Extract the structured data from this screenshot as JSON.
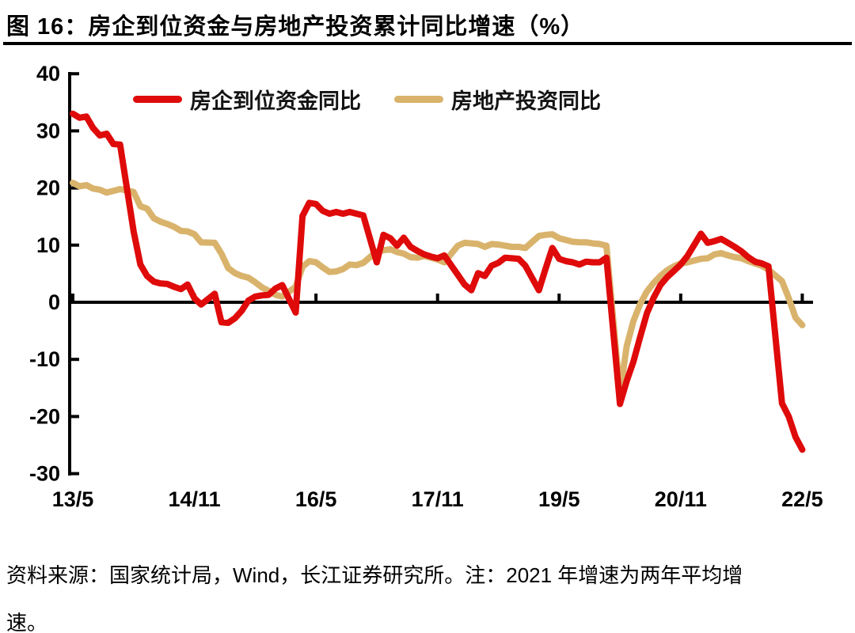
{
  "page": {
    "title": "图 16：房企到位资金与房地产投资累计同比增速（%）",
    "footer": "资料来源：国家统计局，Wind，长江证券研究所。注：2021 年增速为两年平均增\n速。"
  },
  "colors": {
    "funds_line": "#df0a0a",
    "investment_line": "#d9b36c",
    "axis": "#000000",
    "text": "#000000"
  },
  "chart_data": {
    "type": "line",
    "title": "房企到位资金与房地产投资累计同比增速（%）",
    "xlabel": "",
    "ylabel": "",
    "ylim": [
      -30,
      40
    ],
    "y_ticks": [
      40,
      30,
      20,
      10,
      0,
      -10,
      -20,
      -30
    ],
    "x_tick_labels": [
      "13/5",
      "14/11",
      "16/5",
      "17/11",
      "19/5",
      "20/11",
      "22/5"
    ],
    "x_tick_month_offsets": [
      0,
      18,
      36,
      54,
      72,
      90,
      108
    ],
    "x_start": "2013/5",
    "x_end": "2022/5",
    "x_unit": "month offset from 2013/5 (cumulative YoY %, no January data points)",
    "grid": false,
    "legend_position": "top",
    "annotation_note": "2021 年增速为两年平均增速",
    "series": [
      {
        "name": "房企到位资金同比",
        "color": "#df0a0a",
        "points": [
          [
            0,
            33.0
          ],
          [
            1,
            32.3
          ],
          [
            2,
            32.5
          ],
          [
            3,
            30.5
          ],
          [
            4,
            29.2
          ],
          [
            5,
            29.5
          ],
          [
            6,
            27.7
          ],
          [
            7,
            27.6
          ],
          [
            9,
            12.4
          ],
          [
            10,
            6.6
          ],
          [
            11,
            4.6
          ],
          [
            12,
            3.6
          ],
          [
            13,
            3.3
          ],
          [
            14,
            3.2
          ],
          [
            15,
            2.7
          ],
          [
            16,
            2.3
          ],
          [
            17,
            3.1
          ],
          [
            18,
            0.7
          ],
          [
            19,
            -0.4
          ],
          [
            21,
            1.5
          ],
          [
            22,
            -3.5
          ],
          [
            23,
            -3.6
          ],
          [
            24,
            -2.8
          ],
          [
            25,
            -1.5
          ],
          [
            26,
            0.3
          ],
          [
            27,
            1.0
          ],
          [
            28,
            1.2
          ],
          [
            29,
            1.3
          ],
          [
            30,
            2.4
          ],
          [
            31,
            3.0
          ],
          [
            33,
            -1.8
          ],
          [
            34,
            15.1
          ],
          [
            35,
            17.4
          ],
          [
            36,
            17.2
          ],
          [
            37,
            16.0
          ],
          [
            38,
            15.5
          ],
          [
            39,
            15.8
          ],
          [
            40,
            15.5
          ],
          [
            41,
            15.8
          ],
          [
            42,
            15.5
          ],
          [
            43,
            15.2
          ],
          [
            45,
            7.0
          ],
          [
            46,
            11.8
          ],
          [
            47,
            11.2
          ],
          [
            48,
            9.9
          ],
          [
            49,
            11.3
          ],
          [
            50,
            9.7
          ],
          [
            51,
            9.0
          ],
          [
            52,
            8.4
          ],
          [
            53,
            8.0
          ],
          [
            54,
            7.7
          ],
          [
            55,
            8.2
          ],
          [
            57,
            4.8
          ],
          [
            58,
            3.1
          ],
          [
            59,
            2.1
          ],
          [
            60,
            5.1
          ],
          [
            61,
            4.6
          ],
          [
            62,
            6.4
          ],
          [
            63,
            6.9
          ],
          [
            64,
            7.8
          ],
          [
            65,
            7.7
          ],
          [
            66,
            7.6
          ],
          [
            67,
            6.4
          ],
          [
            69,
            2.1
          ],
          [
            70,
            5.9
          ],
          [
            71,
            9.5
          ],
          [
            72,
            7.6
          ],
          [
            73,
            7.2
          ],
          [
            74,
            7.0
          ],
          [
            75,
            6.6
          ],
          [
            76,
            7.1
          ],
          [
            77,
            7.0
          ],
          [
            78,
            7.0
          ],
          [
            79,
            7.8
          ],
          [
            81,
            -17.8
          ],
          [
            82,
            -13.8
          ],
          [
            83,
            -10.4
          ],
          [
            84,
            -6.1
          ],
          [
            85,
            -1.9
          ],
          [
            86,
            0.8
          ],
          [
            87,
            3.0
          ],
          [
            88,
            4.4
          ],
          [
            89,
            5.5
          ],
          [
            90,
            6.6
          ],
          [
            91,
            8.1
          ],
          [
            93,
            12.0
          ],
          [
            94,
            10.4
          ],
          [
            95,
            10.7
          ],
          [
            96,
            11.1
          ],
          [
            97,
            10.4
          ],
          [
            98,
            9.7
          ],
          [
            99,
            8.9
          ],
          [
            100,
            7.9
          ],
          [
            101,
            7.1
          ],
          [
            102,
            6.8
          ],
          [
            103,
            6.3
          ],
          [
            105,
            -17.7
          ],
          [
            106,
            -20.0
          ],
          [
            107,
            -23.6
          ],
          [
            108,
            -25.8
          ]
        ]
      },
      {
        "name": "房地产投资同比",
        "color": "#d9b36c",
        "points": [
          [
            0,
            20.9
          ],
          [
            1,
            20.3
          ],
          [
            2,
            20.5
          ],
          [
            3,
            19.9
          ],
          [
            4,
            19.7
          ],
          [
            5,
            19.2
          ],
          [
            6,
            19.5
          ],
          [
            7,
            19.8
          ],
          [
            9,
            19.3
          ],
          [
            10,
            16.8
          ],
          [
            11,
            16.4
          ],
          [
            12,
            14.7
          ],
          [
            13,
            14.1
          ],
          [
            14,
            13.7
          ],
          [
            15,
            13.2
          ],
          [
            16,
            12.5
          ],
          [
            17,
            12.4
          ],
          [
            18,
            11.9
          ],
          [
            19,
            10.5
          ],
          [
            21,
            10.4
          ],
          [
            22,
            8.5
          ],
          [
            23,
            6.0
          ],
          [
            24,
            5.1
          ],
          [
            25,
            4.6
          ],
          [
            26,
            4.3
          ],
          [
            27,
            3.5
          ],
          [
            28,
            2.6
          ],
          [
            29,
            2.0
          ],
          [
            30,
            1.3
          ],
          [
            31,
            1.0
          ],
          [
            33,
            2.7
          ],
          [
            34,
            6.2
          ],
          [
            35,
            7.2
          ],
          [
            36,
            7.0
          ],
          [
            37,
            6.1
          ],
          [
            38,
            5.3
          ],
          [
            39,
            5.4
          ],
          [
            40,
            5.8
          ],
          [
            41,
            6.6
          ],
          [
            42,
            6.5
          ],
          [
            43,
            6.9
          ],
          [
            45,
            8.9
          ],
          [
            46,
            9.1
          ],
          [
            47,
            9.3
          ],
          [
            48,
            8.8
          ],
          [
            49,
            8.5
          ],
          [
            50,
            7.9
          ],
          [
            51,
            7.8
          ],
          [
            52,
            8.1
          ],
          [
            53,
            7.8
          ],
          [
            54,
            7.5
          ],
          [
            55,
            7.0
          ],
          [
            57,
            9.9
          ],
          [
            58,
            10.4
          ],
          [
            59,
            10.3
          ],
          [
            60,
            10.2
          ],
          [
            61,
            9.7
          ],
          [
            62,
            10.2
          ],
          [
            63,
            10.1
          ],
          [
            64,
            9.9
          ],
          [
            65,
            9.7
          ],
          [
            66,
            9.7
          ],
          [
            67,
            9.5
          ],
          [
            69,
            11.6
          ],
          [
            70,
            11.8
          ],
          [
            71,
            11.9
          ],
          [
            72,
            11.2
          ],
          [
            73,
            10.9
          ],
          [
            74,
            10.6
          ],
          [
            75,
            10.5
          ],
          [
            76,
            10.5
          ],
          [
            77,
            10.3
          ],
          [
            78,
            10.2
          ],
          [
            79,
            9.9
          ],
          [
            81,
            -16.0
          ],
          [
            82,
            -7.7
          ],
          [
            83,
            -3.3
          ],
          [
            84,
            -0.3
          ],
          [
            85,
            1.9
          ],
          [
            86,
            3.4
          ],
          [
            87,
            4.6
          ],
          [
            88,
            5.6
          ],
          [
            89,
            6.3
          ],
          [
            90,
            6.8
          ],
          [
            91,
            7.0
          ],
          [
            93,
            7.6
          ],
          [
            94,
            7.7
          ],
          [
            95,
            8.4
          ],
          [
            96,
            8.6
          ],
          [
            97,
            8.2
          ],
          [
            98,
            7.9
          ],
          [
            99,
            7.7
          ],
          [
            100,
            7.2
          ],
          [
            101,
            6.8
          ],
          [
            102,
            6.4
          ],
          [
            103,
            5.7
          ],
          [
            105,
            3.7
          ],
          [
            106,
            0.7
          ],
          [
            107,
            -2.7
          ],
          [
            108,
            -4.0
          ]
        ]
      }
    ]
  }
}
